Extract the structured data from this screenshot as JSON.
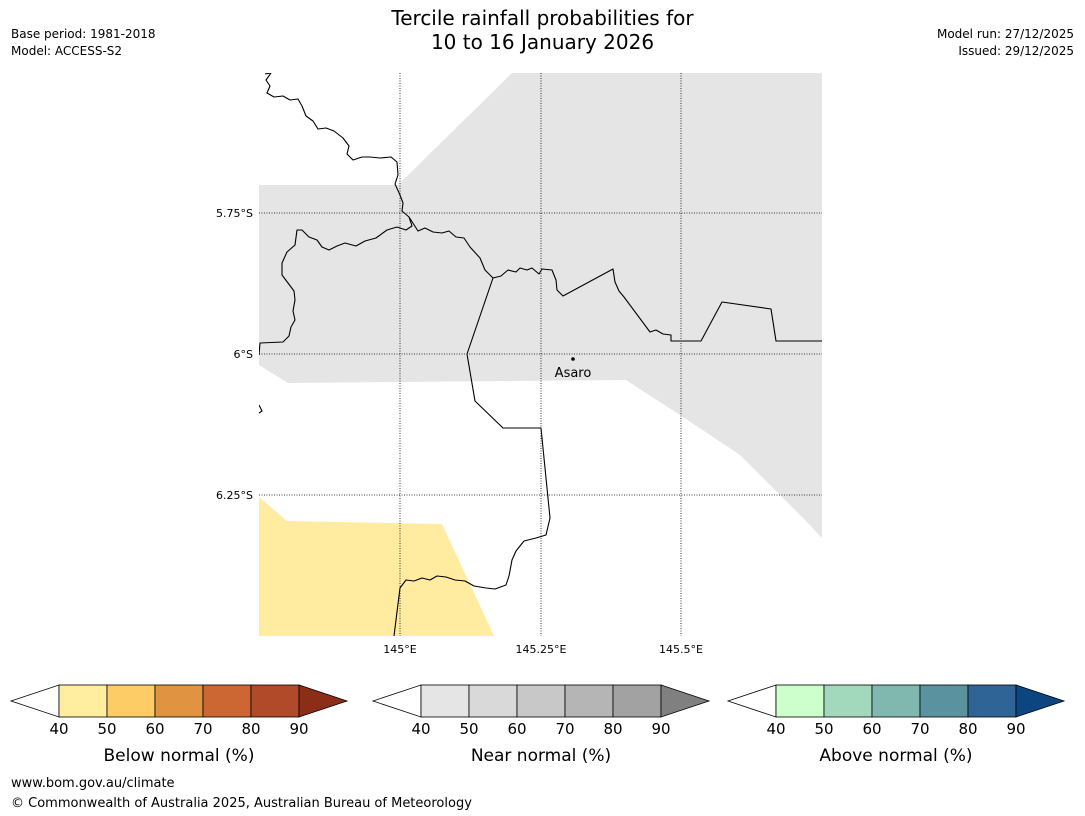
{
  "header": {
    "title_line1": "Tercile rainfall probabilities for",
    "title_line2": "10 to 16 January 2026",
    "base_period": "Base period: 1981-2018",
    "model": "Model: ACCESS-S2",
    "model_run": "Model run: 27/12/2025",
    "issued": "Issued: 29/12/2025"
  },
  "map": {
    "lat_labels": [
      "5.75°S",
      "6°S",
      "6.25°S"
    ],
    "lon_labels": [
      "145°E",
      "145.25°E",
      "145.5°E"
    ],
    "place": "Asaro",
    "colors": {
      "near_normal_shade": "#e5e5e5",
      "below_normal_shade": "#ffeca0",
      "border": "#000000"
    }
  },
  "colorbars": [
    {
      "id": "below",
      "title": "Below normal (%)",
      "ticks": [
        "40",
        "50",
        "60",
        "70",
        "80",
        "90"
      ],
      "colors": [
        "#ffeda0",
        "#fecc66",
        "#e09442",
        "#cc6633",
        "#b04a28",
        "#8c2d18"
      ]
    },
    {
      "id": "near",
      "title": "Near normal (%)",
      "ticks": [
        "40",
        "50",
        "60",
        "70",
        "80",
        "90"
      ],
      "colors": [
        "#e5e5e5",
        "#d9d9d9",
        "#c8c8c8",
        "#b5b5b5",
        "#a2a2a2",
        "#808080"
      ]
    },
    {
      "id": "above",
      "title": "Above normal (%)",
      "ticks": [
        "40",
        "50",
        "60",
        "70",
        "80",
        "90"
      ],
      "colors": [
        "#ccffcc",
        "#a2d9bc",
        "#80b8b0",
        "#5a92a0",
        "#2e6496",
        "#0c4680"
      ]
    }
  ],
  "footer": {
    "url": "www.bom.gov.au/climate",
    "copyright": "© Commonwealth of Australia 2025, Australian Bureau of Meteorology"
  }
}
